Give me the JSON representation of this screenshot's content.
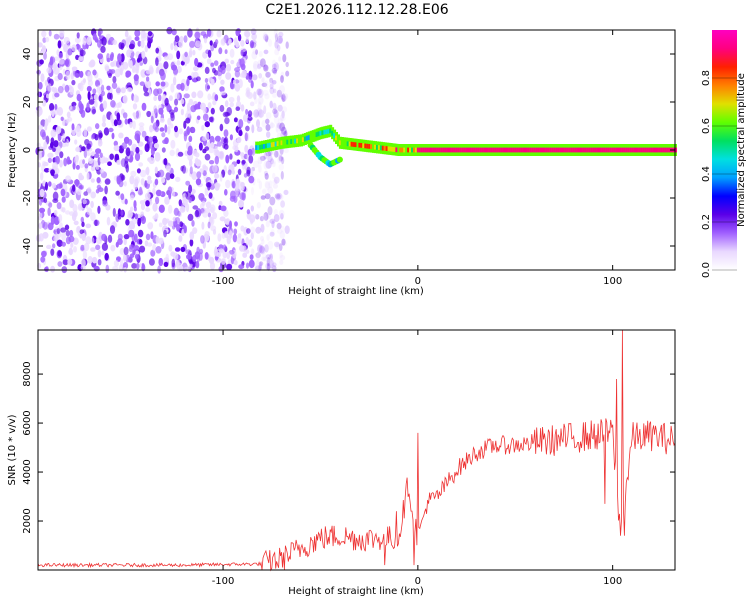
{
  "chart_data": [
    {
      "type": "heatmap",
      "title": "C2E1.2026.112.12.28.E06",
      "xlabel": "Height of straight line (km)",
      "ylabel": "Frequency (Hz)",
      "xlim": [
        -195,
        132
      ],
      "ylim": [
        -50,
        50
      ],
      "xticks": [
        "-100",
        "0",
        "100"
      ],
      "yticks": [
        "-40",
        "-20",
        "0",
        "20",
        "40"
      ],
      "xtick_values": [
        -100,
        0,
        100
      ],
      "ytick_values": [
        -40,
        -20,
        0,
        20,
        40
      ],
      "colorbar": {
        "label": "Normalized spectral amplitude",
        "range": [
          0,
          1
        ],
        "ticks": [
          "0.0",
          "0.2",
          "0.4",
          "0.6",
          "0.8"
        ],
        "tick_values": [
          0,
          0.2,
          0.4,
          0.6,
          0.8
        ]
      },
      "features": {
        "noise_region_x": [
          -195,
          -75
        ],
        "onset_x": -75,
        "ridge": [
          [
            -82,
            1
          ],
          [
            -70,
            3
          ],
          [
            -60,
            4
          ],
          [
            -50,
            7
          ],
          [
            -45,
            8
          ],
          [
            -40,
            3
          ],
          [
            -30,
            2
          ],
          [
            -20,
            1
          ],
          [
            -10,
            0
          ],
          [
            0,
            0
          ],
          [
            20,
            0
          ],
          [
            60,
            0
          ],
          [
            100,
            0
          ],
          [
            132,
            0
          ]
        ],
        "secondary_branch": [
          [
            -55,
            2
          ],
          [
            -50,
            -3
          ],
          [
            -45,
            -6
          ],
          [
            -40,
            -4
          ]
        ]
      }
    },
    {
      "type": "line",
      "title": "",
      "xlabel": "Height of straight line (km)",
      "ylabel": "SNR (10 * v/v)",
      "xlim": [
        -195,
        132
      ],
      "ylim": [
        0,
        9800
      ],
      "xticks": [
        "-100",
        "0",
        "100"
      ],
      "yticks": [
        "2000",
        "4000",
        "6000",
        "8000"
      ],
      "xtick_values": [
        -100,
        0,
        100
      ],
      "ytick_values": [
        2000,
        4000,
        6000,
        8000
      ],
      "series": [
        {
          "name": "SNR",
          "color": "#ee3333",
          "trend": [
            [
              -195,
              200
            ],
            [
              -120,
              200
            ],
            [
              -80,
              250
            ],
            [
              -70,
              450
            ],
            [
              -60,
              900
            ],
            [
              -50,
              1300
            ],
            [
              -40,
              1400
            ],
            [
              -30,
              1250
            ],
            [
              -20,
              1300
            ],
            [
              -10,
              1300
            ],
            [
              -5,
              3500
            ],
            [
              0,
              1300
            ],
            [
              5,
              2800
            ],
            [
              10,
              3000
            ],
            [
              20,
              4100
            ],
            [
              30,
              4800
            ],
            [
              40,
              5100
            ],
            [
              50,
              5100
            ],
            [
              60,
              5200
            ],
            [
              70,
              5300
            ],
            [
              80,
              5400
            ],
            [
              90,
              5500
            ],
            [
              100,
              5600
            ],
            [
              104,
              1400
            ],
            [
              110,
              5400
            ],
            [
              120,
              5500
            ],
            [
              132,
              5300
            ]
          ],
          "spikes": [
            [
              -17,
              200
            ],
            [
              -11,
              2400
            ],
            [
              -2,
              200
            ],
            [
              0,
              5600
            ],
            [
              96,
              2700
            ],
            [
              102,
              7800
            ],
            [
              105,
              9800
            ],
            [
              106,
              1400
            ]
          ]
        }
      ]
    }
  ],
  "colors": {
    "noise": "#7a22e8",
    "signal_line": "#ee3333",
    "colormap": [
      "#ffffff",
      "#e9d8ff",
      "#a060ff",
      "#5a00e8",
      "#0000ff",
      "#00a0ff",
      "#00e0e0",
      "#00e060",
      "#60ff00",
      "#e0e000",
      "#ff8000",
      "#ff2000",
      "#ff0080",
      "#ff00c0"
    ]
  }
}
